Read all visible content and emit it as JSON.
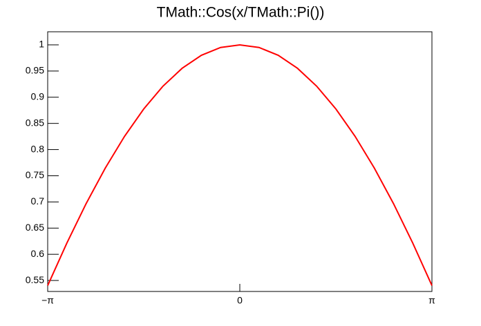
{
  "chart_data": {
    "type": "line",
    "title": "TMath::Cos(x/TMath::Pi())",
    "x": [
      -3.1416,
      -2.8274,
      -2.5133,
      -2.1991,
      -1.885,
      -1.5708,
      -1.2566,
      -0.9425,
      -0.6283,
      -0.3142,
      0,
      0.3142,
      0.6283,
      0.9425,
      1.2566,
      1.5708,
      1.885,
      2.1991,
      2.5133,
      2.8274,
      3.1416
    ],
    "series": [
      {
        "name": null,
        "color": "#ff0000",
        "values": [
          0.5403,
          0.6216,
          0.6967,
          0.7648,
          0.8253,
          0.8776,
          0.9211,
          0.9553,
          0.9801,
          0.995,
          1,
          0.995,
          0.9801,
          0.9553,
          0.9211,
          0.8776,
          0.8253,
          0.7648,
          0.6967,
          0.6216,
          0.5403
        ]
      }
    ],
    "xlim": [
      -3.1416,
      3.1416
    ],
    "xticks": [
      {
        "value": -3.1416,
        "label": "−π"
      },
      0,
      {
        "value": 3.1416,
        "label": "π"
      }
    ],
    "ylim": [
      0.529,
      1.025
    ],
    "yticks": [
      0.55,
      0.6,
      0.65,
      0.7,
      0.75,
      0.8,
      0.85,
      0.9,
      0.95,
      1
    ],
    "grid": false
  }
}
